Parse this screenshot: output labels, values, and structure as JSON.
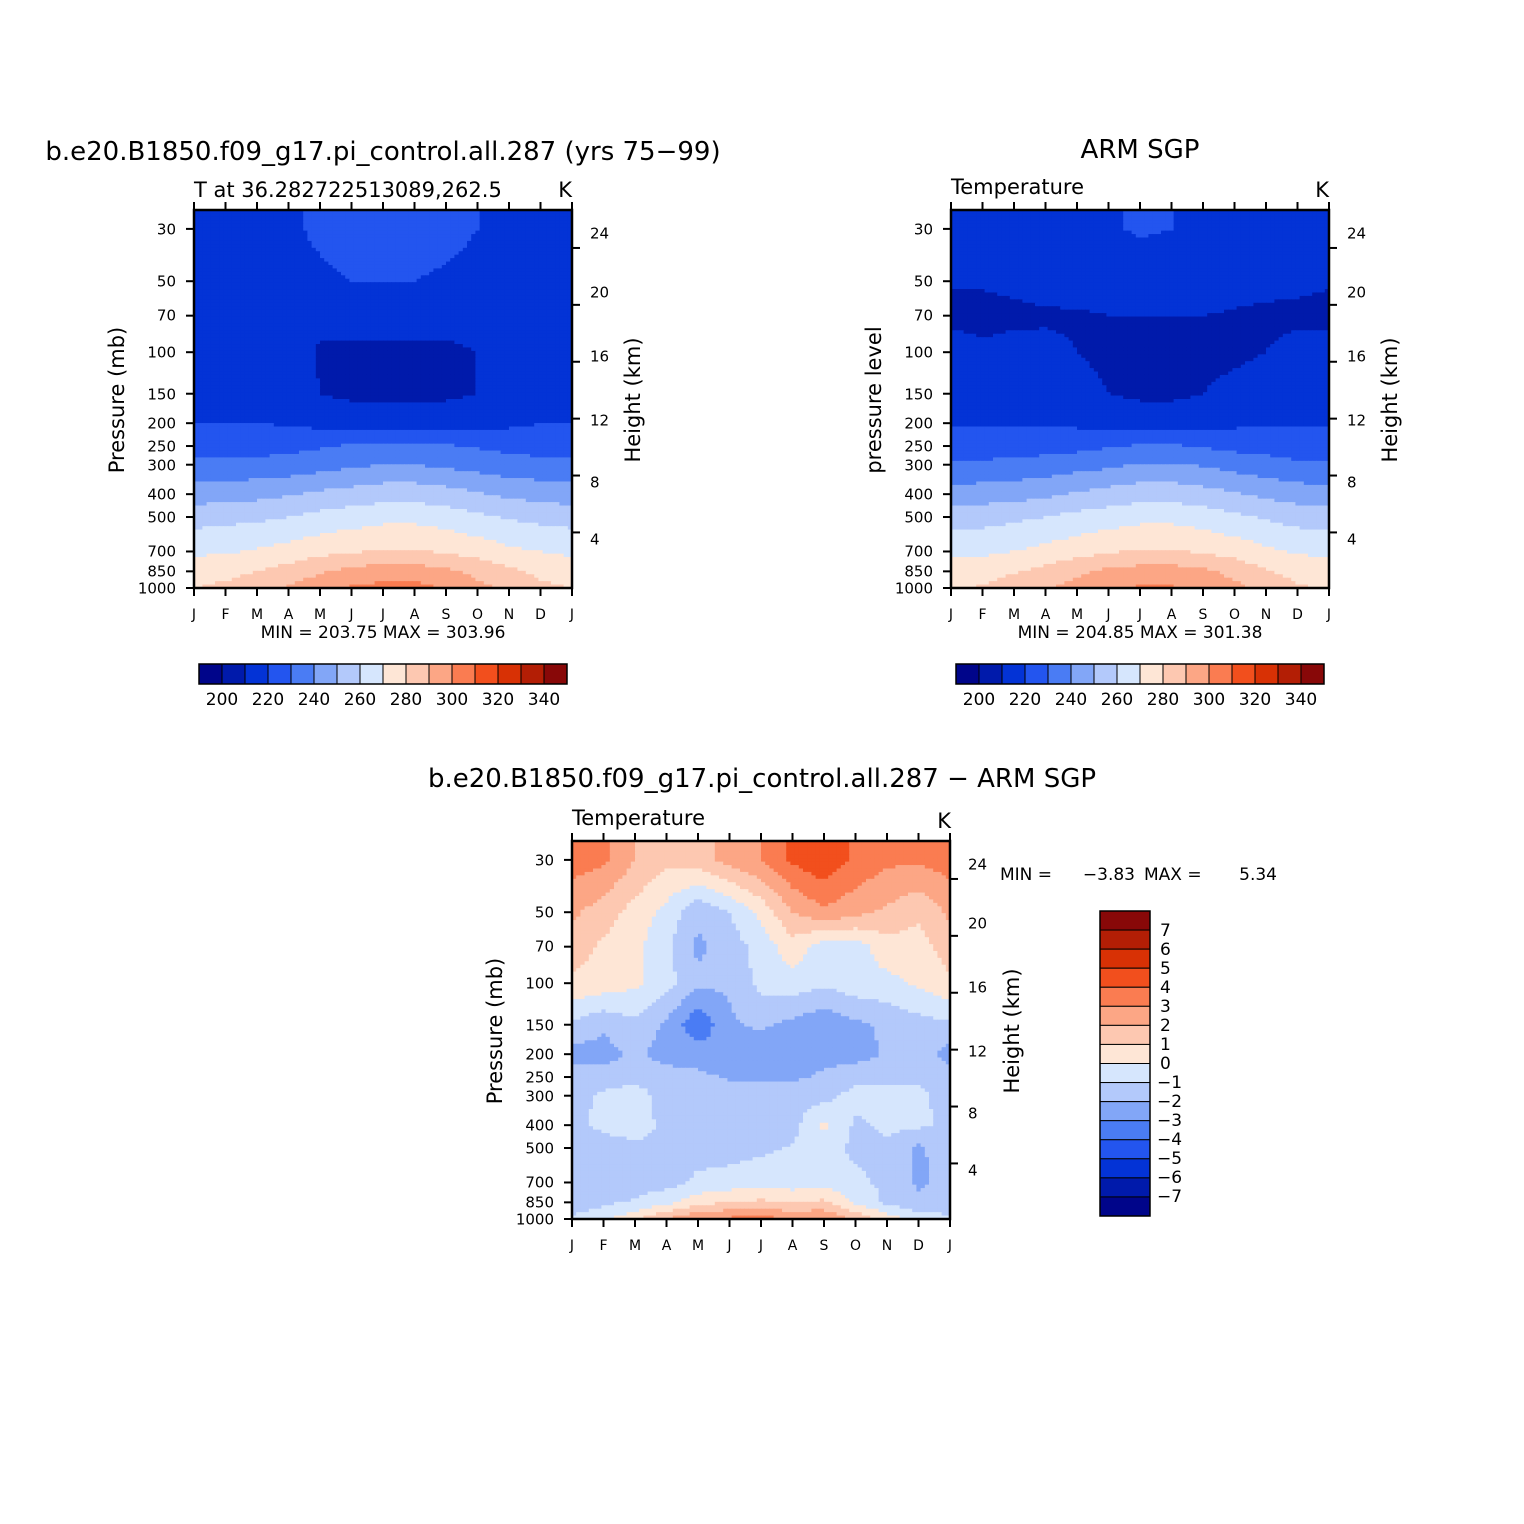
{
  "chart_data": [
    {
      "type": "heatmap",
      "title": "b.e20.B1850.f09_g17.pi_control.all.287 (yrs 75−99)",
      "subtitle": "T at 36.282722513089,262.5",
      "units": "K",
      "ylabel": "Pressure (mb)",
      "ylabel_right": "Height (km)",
      "x_ticks": [
        "J",
        "F",
        "M",
        "A",
        "M",
        "J",
        "J",
        "A",
        "S",
        "O",
        "N",
        "D",
        "J"
      ],
      "y_ticks": [
        "30",
        "50",
        "70",
        "100",
        "150",
        "200",
        "250",
        "300",
        "400",
        "500",
        "700",
        "850",
        "1000"
      ],
      "y_ticks_right": [
        "24",
        "20",
        "16",
        "12",
        "8",
        "4"
      ],
      "stats": "MIN = 203.75 MAX = 303.96",
      "colorbar_labels": [
        "200",
        "220",
        "240",
        "260",
        "280",
        "300",
        "320",
        "340"
      ],
      "colorbar_levels": [
        190,
        200,
        210,
        220,
        230,
        240,
        250,
        260,
        270,
        280,
        290,
        300,
        310,
        320,
        330,
        340,
        350
      ],
      "colorbar_colors": [
        "#00058a",
        "#001aab",
        "#0333d6",
        "#2355ef",
        "#4a7cf4",
        "#82a6f7",
        "#b3c9fb",
        "#d6e6fd",
        "#fee6d6",
        "#fdc8b1",
        "#fca685",
        "#fa7c51",
        "#f24f1d",
        "#d83105",
        "#b31e05",
        "#880808"
      ],
      "fields": {
        "x_month": [
          0,
          1,
          2,
          3,
          4,
          5,
          6,
          7,
          8,
          9,
          10,
          11,
          12
        ],
        "pressure": [
          30,
          50,
          70,
          100,
          150,
          200,
          250,
          300,
          400,
          500,
          700,
          850,
          1000
        ],
        "temperature": [
          [
            218,
            218,
            218,
            219,
            221,
            223,
            223,
            223,
            222,
            220,
            218,
            218,
            218
          ],
          [
            217,
            217,
            217,
            218,
            219,
            220,
            220,
            220,
            219,
            218,
            217,
            217,
            217
          ],
          [
            213,
            212,
            213,
            214,
            212,
            212,
            212,
            212,
            212,
            212,
            213,
            214,
            213
          ],
          [
            216,
            215,
            215,
            214,
            209,
            209,
            209,
            209,
            209,
            210,
            211,
            214,
            216
          ],
          [
            218,
            218,
            217,
            216,
            210,
            208,
            208,
            208,
            208,
            210,
            214,
            216,
            218
          ],
          [
            220,
            220,
            220,
            219,
            217,
            216,
            216,
            216,
            216,
            217,
            218,
            220,
            220
          ],
          [
            226,
            226,
            226,
            227,
            229,
            231,
            232,
            232,
            231,
            229,
            227,
            226,
            226
          ],
          [
            233,
            233,
            233,
            234,
            236,
            238,
            240,
            240,
            238,
            236,
            234,
            233,
            233
          ],
          [
            245,
            246,
            247,
            249,
            252,
            254,
            256,
            256,
            254,
            251,
            248,
            246,
            245
          ],
          [
            256,
            257,
            258,
            260,
            263,
            265,
            267,
            267,
            265,
            262,
            259,
            257,
            256
          ],
          [
            268,
            269,
            271,
            274,
            277,
            279,
            281,
            281,
            279,
            276,
            272,
            270,
            268
          ],
          [
            276,
            277,
            280,
            284,
            289,
            293,
            295,
            295,
            292,
            287,
            282,
            278,
            276
          ],
          [
            280,
            282,
            286,
            291,
            296,
            301,
            303,
            303,
            299,
            293,
            287,
            282,
            280
          ]
        ]
      }
    },
    {
      "type": "heatmap",
      "title": "ARM SGP",
      "subtitle": "Temperature",
      "units": "K",
      "ylabel": "pressure level",
      "ylabel_right": "Height (km)",
      "x_ticks": [
        "J",
        "F",
        "M",
        "A",
        "M",
        "J",
        "J",
        "A",
        "S",
        "O",
        "N",
        "D",
        "J"
      ],
      "y_ticks": [
        "30",
        "50",
        "70",
        "100",
        "150",
        "200",
        "250",
        "300",
        "400",
        "500",
        "700",
        "850",
        "1000"
      ],
      "y_ticks_right": [
        "24",
        "20",
        "16",
        "12",
        "8",
        "4"
      ],
      "stats": "MIN = 204.85 MAX = 301.38",
      "colorbar_labels": [
        "200",
        "220",
        "240",
        "260",
        "280",
        "300",
        "320",
        "340"
      ],
      "colorbar_levels": [
        190,
        200,
        210,
        220,
        230,
        240,
        250,
        260,
        270,
        280,
        290,
        300,
        310,
        320,
        330,
        340,
        350
      ],
      "colorbar_colors": [
        "#00058a",
        "#001aab",
        "#0333d6",
        "#2355ef",
        "#4a7cf4",
        "#82a6f7",
        "#b3c9fb",
        "#d6e6fd",
        "#fee6d6",
        "#fdc8b1",
        "#fca685",
        "#fa7c51",
        "#f24f1d",
        "#d83105",
        "#b31e05",
        "#880808"
      ],
      "fields": {
        "x_month": [
          0,
          1,
          2,
          3,
          4,
          5,
          6,
          7,
          8,
          9,
          10,
          11,
          12
        ],
        "pressure": [
          30,
          50,
          70,
          100,
          150,
          200,
          250,
          300,
          400,
          500,
          700,
          850,
          1000
        ],
        "temperature": [
          [
            216,
            216,
            216,
            217,
            218,
            219,
            221,
            220,
            218,
            217,
            216,
            216,
            216
          ],
          [
            211,
            211,
            212,
            213,
            214,
            215,
            215,
            215,
            215,
            214,
            213,
            212,
            211
          ],
          [
            207,
            207,
            208,
            209,
            209,
            210,
            210,
            210,
            210,
            209,
            208,
            208,
            207
          ],
          [
            215,
            212,
            213,
            212,
            210,
            208,
            207,
            207,
            207,
            208,
            210,
            213,
            215
          ],
          [
            217,
            217,
            217,
            216,
            213,
            210,
            208,
            208,
            210,
            213,
            215,
            216,
            217
          ],
          [
            219,
            219,
            219,
            219,
            218,
            217,
            216,
            216,
            217,
            218,
            219,
            219,
            219
          ],
          [
            224,
            224,
            225,
            226,
            227,
            229,
            231,
            231,
            229,
            227,
            226,
            224,
            224
          ],
          [
            232,
            232,
            233,
            234,
            236,
            238,
            241,
            241,
            239,
            236,
            234,
            232,
            232
          ],
          [
            244,
            245,
            246,
            248,
            251,
            254,
            256,
            256,
            254,
            251,
            248,
            245,
            244
          ],
          [
            255,
            256,
            258,
            260,
            263,
            265,
            267,
            267,
            265,
            262,
            259,
            256,
            255
          ],
          [
            267,
            268,
            270,
            273,
            276,
            279,
            281,
            281,
            279,
            276,
            272,
            269,
            267
          ],
          [
            275,
            276,
            279,
            283,
            288,
            292,
            294,
            294,
            292,
            287,
            281,
            277,
            275
          ],
          [
            279,
            281,
            285,
            289,
            294,
            299,
            301,
            301,
            298,
            293,
            286,
            281,
            279
          ]
        ]
      }
    },
    {
      "type": "heatmap",
      "title": "b.e20.B1850.f09_g17.pi_control.all.287 − ARM SGP",
      "subtitle": "Temperature",
      "units": "K",
      "ylabel": "Pressure (mb)",
      "ylabel_right": "Height (km)",
      "x_ticks": [
        "J",
        "F",
        "M",
        "A",
        "M",
        "J",
        "J",
        "A",
        "S",
        "O",
        "N",
        "D",
        "J"
      ],
      "y_ticks": [
        "30",
        "50",
        "70",
        "100",
        "150",
        "200",
        "250",
        "300",
        "400",
        "500",
        "700",
        "850",
        "1000"
      ],
      "y_ticks_right": [
        "24",
        "20",
        "16",
        "12",
        "8",
        "4"
      ],
      "stats_min_label": "MIN =",
      "stats_min": "−3.83",
      "stats_max_label": "MAX =",
      "stats_max": "5.34",
      "colorbar_labels": [
        "7",
        "6",
        "5",
        "4",
        "3",
        "2",
        "1",
        "0",
        "−1",
        "−2",
        "−3",
        "−4",
        "−5",
        "−6",
        "−7"
      ],
      "colorbar_levels": [
        -8,
        -7,
        -6,
        -5,
        -4,
        -3,
        -2,
        -1,
        0,
        1,
        2,
        3,
        4,
        5,
        6,
        7,
        8
      ],
      "colorbar_colors": [
        "#00058a",
        "#001aab",
        "#0333d6",
        "#2355ef",
        "#4a7cf4",
        "#82a6f7",
        "#b3c9fb",
        "#d6e6fd",
        "#fee6d6",
        "#fdc8b1",
        "#fca685",
        "#fa7c51",
        "#f24f1d",
        "#d83105",
        "#b31e05",
        "#880808"
      ],
      "fields": {
        "x_month": [
          0,
          1,
          2,
          3,
          4,
          5,
          6,
          7,
          8,
          9,
          10,
          11,
          12
        ],
        "pressure": [
          30,
          50,
          70,
          100,
          150,
          200,
          250,
          300,
          400,
          500,
          700,
          850,
          1000
        ],
        "temperature": [
          [
            3.5,
            3.2,
            2.0,
            1.2,
            1.6,
            2.4,
            3.0,
            4.2,
            4.8,
            3.8,
            3.2,
            3.2,
            3.5
          ],
          [
            2.2,
            1.5,
            0.6,
            -0.3,
            -1.8,
            -1.0,
            0.3,
            2.0,
            2.8,
            2.3,
            1.8,
            1.2,
            2.2
          ],
          [
            1.5,
            0.8,
            0.3,
            -0.8,
            -2.2,
            -1.5,
            -0.6,
            0.6,
            -0.5,
            -0.5,
            0.6,
            0.6,
            1.5
          ],
          [
            0.8,
            0.6,
            0.2,
            -0.6,
            -1.8,
            -1.8,
            -0.7,
            -0.4,
            -0.8,
            -0.4,
            -0.3,
            0.2,
            0.8
          ],
          [
            -1.2,
            -1.8,
            -1.2,
            -2.2,
            -3.8,
            -2.2,
            -1.8,
            -2.3,
            -2.8,
            -2.2,
            -1.8,
            -1.4,
            -1.2
          ],
          [
            -2.4,
            -2.4,
            -1.8,
            -2.4,
            -2.4,
            -2.8,
            -2.8,
            -2.8,
            -2.4,
            -2.4,
            -1.9,
            -1.6,
            -2.4
          ],
          [
            -1.6,
            -1.6,
            -1.4,
            -1.6,
            -1.8,
            -2.1,
            -2.2,
            -2.2,
            -1.8,
            -1.4,
            -1.2,
            -1.2,
            -1.6
          ],
          [
            -1.4,
            -0.8,
            -0.4,
            -1.6,
            -1.6,
            -1.6,
            -1.6,
            -1.4,
            -1.4,
            -0.6,
            -0.6,
            -0.8,
            -1.4
          ],
          [
            -1.2,
            -0.8,
            -0.6,
            -1.2,
            -1.6,
            -1.6,
            -1.6,
            -1.4,
            0.3,
            -1.2,
            -0.8,
            -0.8,
            -1.2
          ],
          [
            -1.4,
            -1.4,
            -1.2,
            -1.2,
            -1.4,
            -1.4,
            -1.2,
            -0.9,
            -0.6,
            -1.2,
            -1.2,
            -2.2,
            -1.4
          ],
          [
            -1.6,
            -1.6,
            -1.4,
            -1.4,
            -0.8,
            -0.6,
            -0.4,
            -0.6,
            -0.4,
            -0.8,
            -1.2,
            -2.2,
            -1.6
          ],
          [
            -1.6,
            -1.2,
            -0.9,
            -0.3,
            0.6,
            1.0,
            1.2,
            1.0,
            1.2,
            -0.2,
            -1.2,
            -1.8,
            -1.6
          ],
          [
            -0.8,
            -0.3,
            0.8,
            2.0,
            3.0,
            3.2,
            3.5,
            2.8,
            3.0,
            1.8,
            0.6,
            -0.4,
            -0.8
          ]
        ]
      }
    }
  ]
}
